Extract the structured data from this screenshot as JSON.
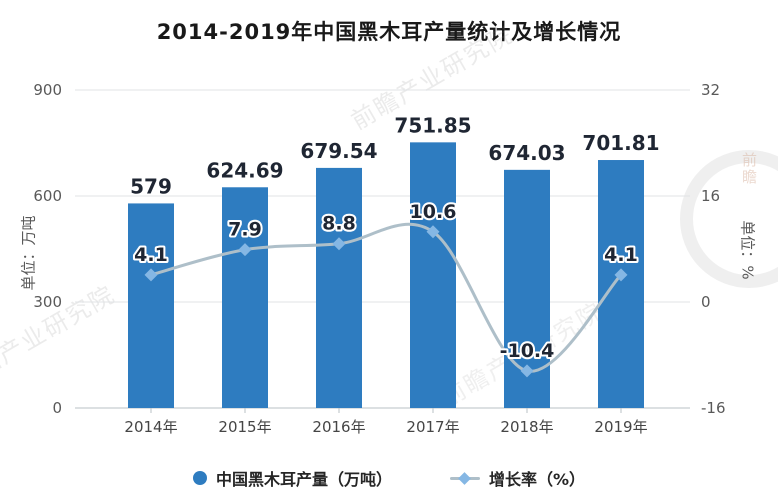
{
  "title": "2014-2019年中国黑木耳产量统计及增长情况",
  "colors": {
    "bar": "#2E7CC0",
    "line": "#AEBFC9",
    "marker": "#85B7E4",
    "value_label": "#1F2633",
    "axis_text": "#595959",
    "grid_line": "#E0E3E6",
    "axis_line": "#B9C0C6"
  },
  "legend": {
    "items": [
      {
        "label": "中国黑木耳产量（万吨）",
        "marker": "circle"
      },
      {
        "label": "增长率（%）",
        "marker": "line-diamond"
      }
    ]
  },
  "watermark": {
    "text": "前瞻产业研究院",
    "logo_text": "前瞻"
  },
  "chart_data": {
    "type": "combo",
    "subtype": [
      "bar",
      "line"
    ],
    "title": "2014-2019年中国黑木耳产量统计及增长情况",
    "categories": [
      "2014年",
      "2015年",
      "2016年",
      "2017年",
      "2018年",
      "2019年"
    ],
    "series": [
      {
        "name": "中国黑木耳产量（万吨）",
        "type": "bar",
        "axis": "left",
        "values": [
          579,
          624.69,
          679.54,
          751.85,
          674.03,
          701.81
        ],
        "labels": [
          "579",
          "624.69",
          "679.54",
          "751.85",
          "674.03",
          "701.81"
        ]
      },
      {
        "name": "增长率（%）",
        "type": "line",
        "axis": "right",
        "values": [
          4.1,
          7.9,
          8.8,
          10.6,
          -10.4,
          4.1
        ],
        "labels": [
          "4.1",
          "7.9",
          "8.8",
          "10.6",
          "-10.4",
          "4.1"
        ]
      }
    ],
    "left_axis": {
      "title": "单位：万吨",
      "ticks": [
        "900",
        "600",
        "300",
        "0"
      ],
      "min": 0,
      "max": 900
    },
    "right_axis": {
      "title": "单位：%",
      "ticks": [
        "32",
        "16",
        "0",
        "-16"
      ],
      "min": -16,
      "max": 32
    },
    "grid": true,
    "legend_position": "bottom"
  }
}
